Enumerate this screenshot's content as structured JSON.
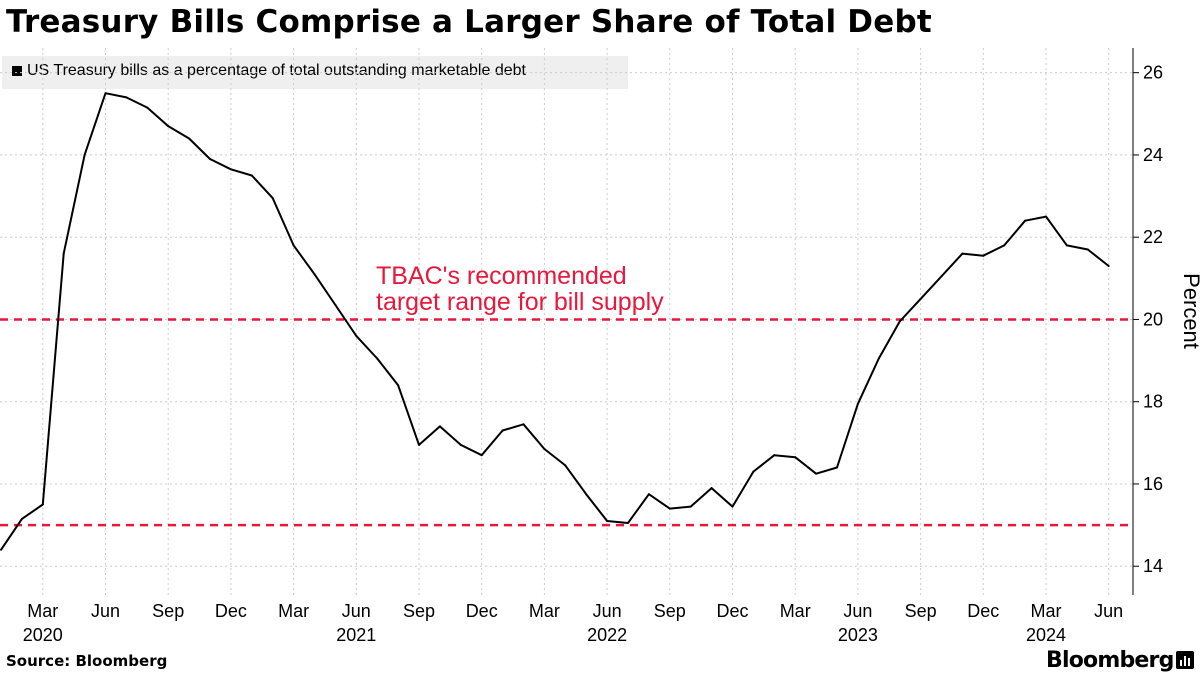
{
  "header": {
    "title": "Treasury Bills Comprise a Larger Share of Total Debt"
  },
  "legend": {
    "label": "US Treasury bills as a percentage of total outstanding marketable debt",
    "swatch_color": "#000000"
  },
  "footer": {
    "source": "Source:  Bloomberg",
    "brand": "Bloomberg",
    "brand_icon": "bar-chart-icon"
  },
  "colors": {
    "line": "#000000",
    "reference": "#e8173b",
    "grid": "#cccccc"
  },
  "chart_data": {
    "type": "line",
    "title": "Treasury Bills Comprise a Larger Share of Total Debt",
    "ylabel": "Percent",
    "ylim": [
      13.3,
      26.6
    ],
    "yticks": [
      14,
      16,
      18,
      20,
      22,
      24,
      26
    ],
    "grid": true,
    "legend_placement": "top-left",
    "x_tick_labels": [
      {
        "date": "2020-03",
        "label": "Mar",
        "year": "2020"
      },
      {
        "date": "2020-06",
        "label": "Jun",
        "year": ""
      },
      {
        "date": "2020-09",
        "label": "Sep",
        "year": ""
      },
      {
        "date": "2020-12",
        "label": "Dec",
        "year": ""
      },
      {
        "date": "2021-03",
        "label": "Mar",
        "year": ""
      },
      {
        "date": "2021-06",
        "label": "Jun",
        "year": "2021"
      },
      {
        "date": "2021-09",
        "label": "Sep",
        "year": ""
      },
      {
        "date": "2021-12",
        "label": "Dec",
        "year": ""
      },
      {
        "date": "2022-03",
        "label": "Mar",
        "year": ""
      },
      {
        "date": "2022-06",
        "label": "Jun",
        "year": "2022"
      },
      {
        "date": "2022-09",
        "label": "Sep",
        "year": ""
      },
      {
        "date": "2022-12",
        "label": "Dec",
        "year": ""
      },
      {
        "date": "2023-03",
        "label": "Mar",
        "year": ""
      },
      {
        "date": "2023-06",
        "label": "Jun",
        "year": "2023"
      },
      {
        "date": "2023-09",
        "label": "Sep",
        "year": ""
      },
      {
        "date": "2023-12",
        "label": "Dec",
        "year": ""
      },
      {
        "date": "2024-03",
        "label": "Mar",
        "year": "2024"
      },
      {
        "date": "2024-06",
        "label": "Jun",
        "year": ""
      }
    ],
    "series": [
      {
        "name": "US Treasury bills as a percentage of total outstanding marketable debt",
        "color": "#000000",
        "points": [
          {
            "x": "2020-01",
            "y": 14.4
          },
          {
            "x": "2020-02",
            "y": 15.15
          },
          {
            "x": "2020-03",
            "y": 15.5
          },
          {
            "x": "2020-04",
            "y": 21.6
          },
          {
            "x": "2020-05",
            "y": 24.0
          },
          {
            "x": "2020-06",
            "y": 25.5
          },
          {
            "x": "2020-07",
            "y": 25.4
          },
          {
            "x": "2020-08",
            "y": 25.15
          },
          {
            "x": "2020-09",
            "y": 24.7
          },
          {
            "x": "2020-10",
            "y": 24.4
          },
          {
            "x": "2020-11",
            "y": 23.9
          },
          {
            "x": "2020-12",
            "y": 23.65
          },
          {
            "x": "2021-01",
            "y": 23.5
          },
          {
            "x": "2021-02",
            "y": 22.95
          },
          {
            "x": "2021-03",
            "y": 21.8
          },
          {
            "x": "2021-04",
            "y": 21.1
          },
          {
            "x": "2021-05",
            "y": 20.35
          },
          {
            "x": "2021-06",
            "y": 19.6
          },
          {
            "x": "2021-07",
            "y": 19.05
          },
          {
            "x": "2021-08",
            "y": 18.4
          },
          {
            "x": "2021-09",
            "y": 16.95
          },
          {
            "x": "2021-10",
            "y": 17.4
          },
          {
            "x": "2021-11",
            "y": 16.95
          },
          {
            "x": "2021-12",
            "y": 16.7
          },
          {
            "x": "2022-01",
            "y": 17.3
          },
          {
            "x": "2022-02",
            "y": 17.45
          },
          {
            "x": "2022-03",
            "y": 16.85
          },
          {
            "x": "2022-04",
            "y": 16.45
          },
          {
            "x": "2022-05",
            "y": 15.75
          },
          {
            "x": "2022-06",
            "y": 15.1
          },
          {
            "x": "2022-07",
            "y": 15.05
          },
          {
            "x": "2022-08",
            "y": 15.75
          },
          {
            "x": "2022-09",
            "y": 15.4
          },
          {
            "x": "2022-10",
            "y": 15.45
          },
          {
            "x": "2022-11",
            "y": 15.9
          },
          {
            "x": "2022-12",
            "y": 15.45
          },
          {
            "x": "2023-01",
            "y": 16.3
          },
          {
            "x": "2023-02",
            "y": 16.7
          },
          {
            "x": "2023-03",
            "y": 16.65
          },
          {
            "x": "2023-04",
            "y": 16.25
          },
          {
            "x": "2023-05",
            "y": 16.4
          },
          {
            "x": "2023-06",
            "y": 17.95
          },
          {
            "x": "2023-07",
            "y": 19.05
          },
          {
            "x": "2023-08",
            "y": 19.95
          },
          {
            "x": "2023-09",
            "y": 20.5
          },
          {
            "x": "2023-10",
            "y": 21.05
          },
          {
            "x": "2023-11",
            "y": 21.6
          },
          {
            "x": "2023-12",
            "y": 21.55
          },
          {
            "x": "2024-01",
            "y": 21.8
          },
          {
            "x": "2024-02",
            "y": 22.4
          },
          {
            "x": "2024-03",
            "y": 22.5
          },
          {
            "x": "2024-04",
            "y": 21.8
          },
          {
            "x": "2024-05",
            "y": 21.7
          },
          {
            "x": "2024-06",
            "y": 21.3
          }
        ]
      }
    ],
    "reference_lines": [
      {
        "y": 20,
        "style": "dashed",
        "color": "#e8173b"
      },
      {
        "y": 15,
        "style": "dashed",
        "color": "#e8173b"
      }
    ],
    "annotations": [
      {
        "text": "TBAC's recommended",
        "near_y": 20
      },
      {
        "text": "target range for bill supply",
        "near_y": 20
      }
    ]
  }
}
